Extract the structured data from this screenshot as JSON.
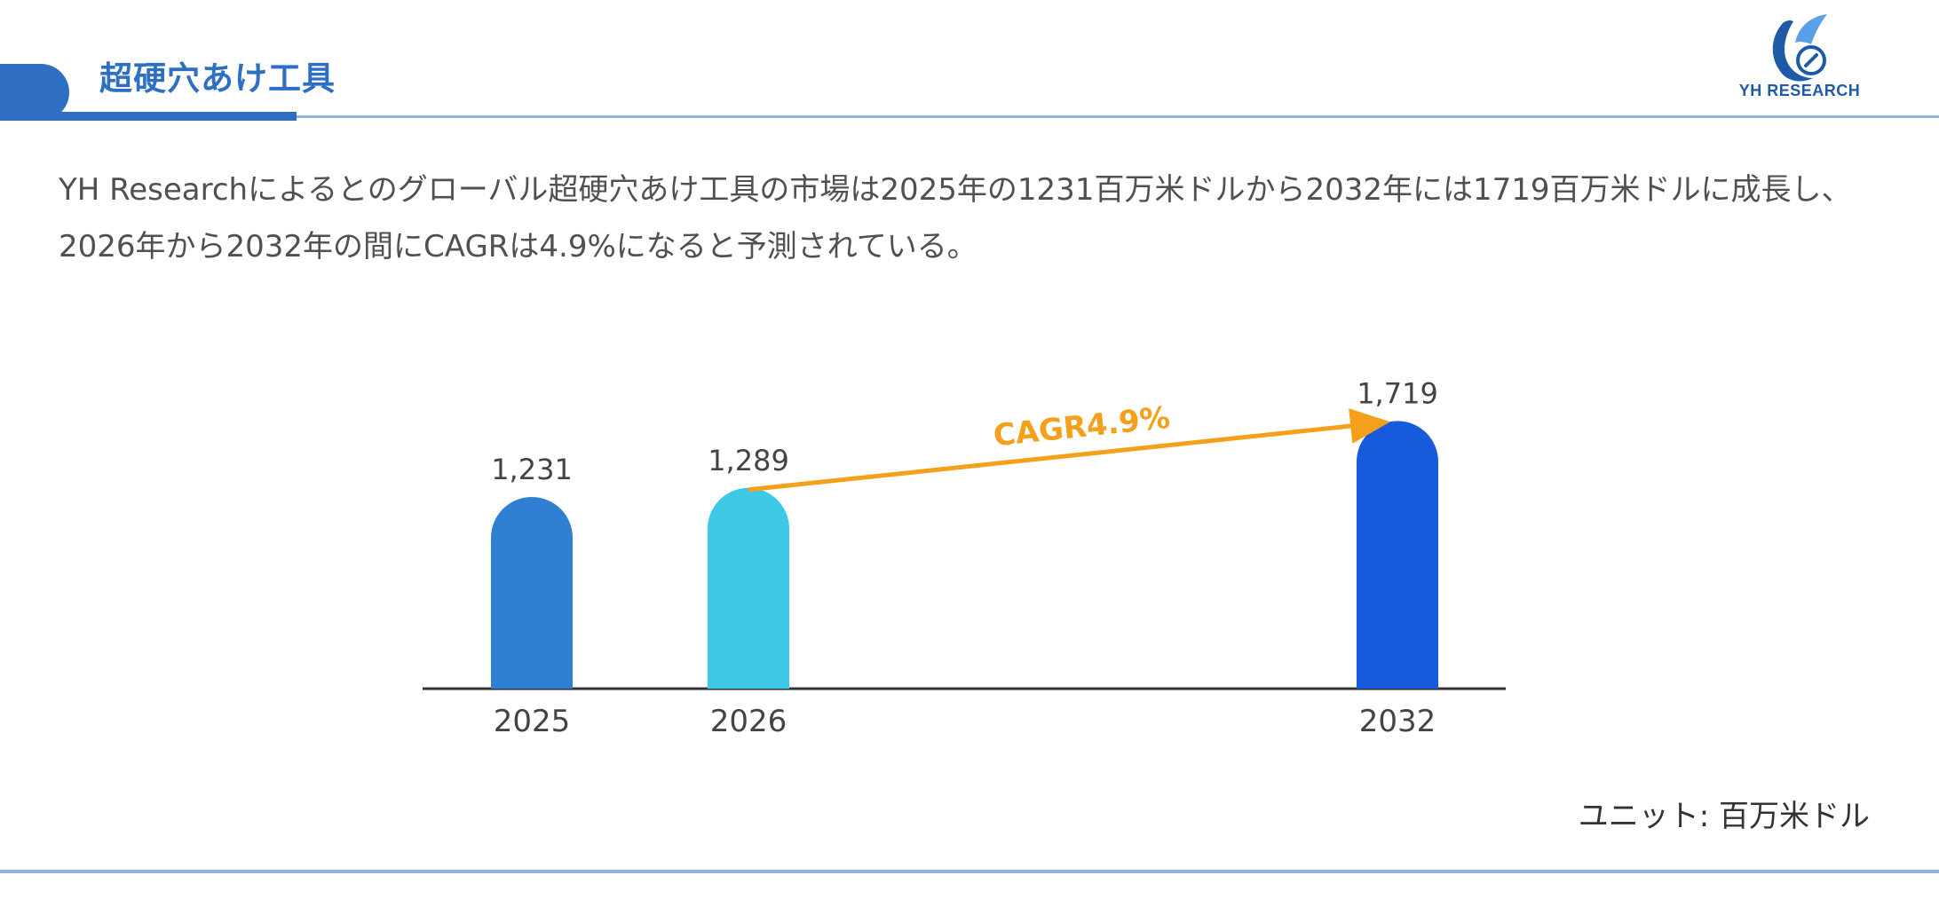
{
  "header": {
    "title": "超硬穴あけ工具"
  },
  "logo": {
    "text": "YH RESEARCH"
  },
  "summary": {
    "text": "YH Researchによるとのグローバル超硬穴あけ工具の市場は2025年の1231百万米ドルから2032年には1719百万米ドルに成長し、2026年から2032年の間にCAGRは4.9%になると予測されている。"
  },
  "unit": {
    "label": "ユニット: 百万米ドル"
  },
  "chart_data": {
    "type": "bar",
    "categories": [
      "2025",
      "2026",
      "2032"
    ],
    "values": [
      1231,
      1289,
      1719
    ],
    "value_labels": [
      "1,231",
      "1,289",
      "1,719"
    ],
    "colors": [
      "#2f7fd3",
      "#3cc8e6",
      "#165bdc"
    ],
    "annotation": {
      "text": "CAGR4.9%",
      "from": "2026",
      "to": "2032",
      "color": "#f5a01a"
    },
    "axis_color": "#333333"
  }
}
